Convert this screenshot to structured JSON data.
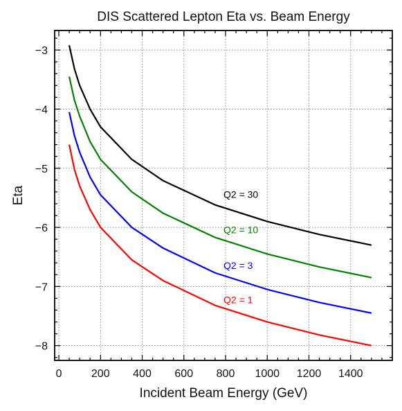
{
  "chart_data": {
    "type": "line",
    "title": "DIS Scattered Lepton Eta vs. Beam Energy",
    "xlabel": "Incident Beam Energy (GeV)",
    "ylabel": "Eta",
    "xlim": [
      -20,
      1600
    ],
    "ylim": [
      -8.25,
      -2.67
    ],
    "xticks": [
      0,
      200,
      400,
      600,
      800,
      1000,
      1200,
      1400
    ],
    "xtick_labels": [
      "0",
      "200",
      "400",
      "600",
      "800",
      "1000",
      "1200",
      "1400"
    ],
    "yticks": [
      -3,
      -4,
      -5,
      -6,
      -7,
      -8
    ],
    "ytick_labels": [
      "−3",
      "−4",
      "−5",
      "−6",
      "−7",
      "−8"
    ],
    "grid": true,
    "x": [
      50,
      75,
      100,
      150,
      200,
      350,
      500,
      750,
      1000,
      1250,
      1500
    ],
    "series": [
      {
        "name": "Q2 = 30",
        "color": "#000000",
        "values": [
          -2.92,
          -3.32,
          -3.6,
          -4.0,
          -4.3,
          -4.85,
          -5.21,
          -5.62,
          -5.9,
          -6.12,
          -6.3
        ]
      },
      {
        "name": "Q2 = 10",
        "color": "#008000",
        "values": [
          -3.45,
          -3.85,
          -4.12,
          -4.55,
          -4.85,
          -5.4,
          -5.76,
          -6.17,
          -6.45,
          -6.67,
          -6.85
        ]
      },
      {
        "name": "Q2 = 3",
        "color": "#0000ff",
        "values": [
          -4.05,
          -4.45,
          -4.73,
          -5.15,
          -5.45,
          -6.0,
          -6.35,
          -6.77,
          -7.05,
          -7.27,
          -7.45
        ]
      },
      {
        "name": "Q2 = 1",
        "color": "#ff0000",
        "values": [
          -4.6,
          -5.02,
          -5.3,
          -5.7,
          -6.0,
          -6.55,
          -6.9,
          -7.32,
          -7.6,
          -7.82,
          -8.0
        ]
      }
    ],
    "annotations": [
      {
        "text": "Q2 = 30",
        "x": 790,
        "y": -5.5,
        "color": "#000000"
      },
      {
        "text": "Q2 = 10",
        "x": 790,
        "y": -6.1,
        "color": "#008000"
      },
      {
        "text": "Q2 = 3",
        "x": 790,
        "y": -6.7,
        "color": "#0000ff"
      },
      {
        "text": "Q2 = 1",
        "x": 790,
        "y": -7.28,
        "color": "#ff0000"
      }
    ]
  }
}
